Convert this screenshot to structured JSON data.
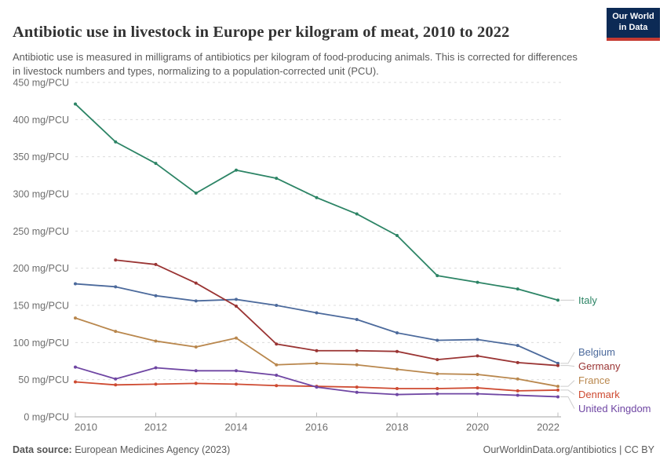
{
  "header": {
    "title": "Antibiotic use in livestock in Europe per kilogram of meat, 2010 to 2022",
    "subtitle": "Antibiotic use is measured in milligrams of antibiotics per kilogram of food-producing animals. This is corrected for differences in livestock numbers and types, normalizing to a population-corrected unit (PCU).",
    "logo": {
      "line1": "Our World",
      "line2": "in Data",
      "bg_color": "#0C2A55",
      "accent_color": "#C53A32"
    }
  },
  "footer": {
    "source_label": "Data source:",
    "source_text": " European Medicines Agency (2023)",
    "attribution": "OurWorldinData.org/antibiotics | CC BY"
  },
  "chart_data": {
    "type": "line",
    "unit": "mg/PCU",
    "grid": true,
    "legend_position": "right-end-labels",
    "ylim": [
      0,
      450
    ],
    "y_ticks": [
      0,
      50,
      100,
      150,
      200,
      250,
      300,
      350,
      400,
      450
    ],
    "x": [
      2010,
      2011,
      2012,
      2013,
      2014,
      2015,
      2016,
      2017,
      2018,
      2019,
      2020,
      2021,
      2022
    ],
    "x_ticks": [
      2010,
      2012,
      2014,
      2016,
      2018,
      2020,
      2022
    ],
    "series": [
      {
        "name": "Italy",
        "color": "#2C8465",
        "values": [
          421,
          370,
          341,
          301,
          332,
          321,
          295,
          273,
          244,
          190,
          181,
          172,
          157
        ]
      },
      {
        "name": "Belgium",
        "color": "#4C6A9C",
        "values": [
          179,
          175,
          163,
          156,
          158,
          150,
          140,
          131,
          113,
          103,
          104,
          96,
          72
        ]
      },
      {
        "name": "Germany",
        "color": "#9A3433",
        "values": [
          null,
          211,
          205,
          180,
          149,
          98,
          89,
          89,
          88,
          77,
          82,
          73,
          69
        ]
      },
      {
        "name": "France",
        "color": "#B9874D",
        "values": [
          133,
          115,
          102,
          94,
          106,
          70,
          72,
          70,
          64,
          58,
          57,
          51,
          41
        ]
      },
      {
        "name": "Denmark",
        "color": "#CE4A31",
        "values": [
          47,
          43,
          44,
          45,
          44,
          42,
          41,
          40,
          38,
          38,
          39,
          35,
          36
        ]
      },
      {
        "name": "United Kingdom",
        "color": "#6F46A3",
        "values": [
          67,
          51,
          66,
          62,
          62,
          56,
          40,
          33,
          30,
          31,
          31,
          29,
          27
        ]
      }
    ]
  }
}
